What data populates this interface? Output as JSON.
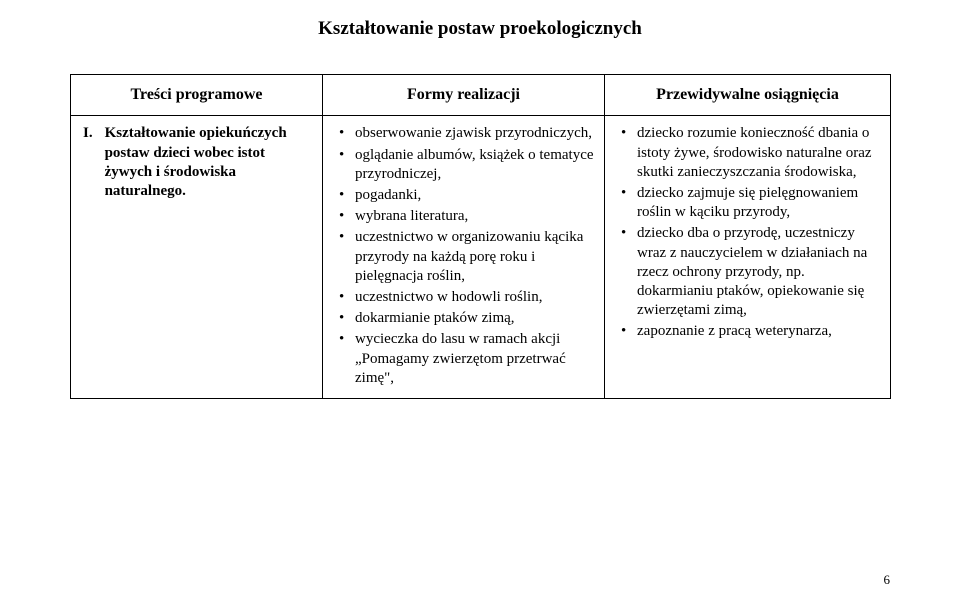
{
  "title": "Kształtowanie postaw proekologicznych",
  "headers": {
    "col1": "Treści programowe",
    "col2": "Formy realizacji",
    "col3": "Przewidywalne osiągnięcia"
  },
  "row1": {
    "roman": "I.",
    "text": "Kształtowanie opiekuńczych postaw dzieci wobec istot żywych i środowiska naturalnego."
  },
  "col2_items": [
    "obserwowanie zjawisk przyrodniczych,",
    "oglądanie albumów, książek o tematyce przyrodniczej,",
    "pogadanki,",
    "wybrana literatura,",
    "uczestnictwo w organizowaniu kącika przyrody na każdą porę roku i pielęgnacja roślin,",
    "uczestnictwo w hodowli roślin,",
    "dokarmianie ptaków zimą,",
    "wycieczka do lasu w ramach akcji „Pomagamy zwierzętom przetrwać zimę\","
  ],
  "col3_items": [
    "dziecko rozumie konieczność dbania o istoty żywe, środowisko naturalne oraz skutki zanieczyszczania środowiska,",
    "dziecko zajmuje się pielęgnowaniem roślin w kąciku przyrody,",
    "dziecko dba o przyrodę, uczestniczy wraz z nauczycielem w działaniach na rzecz ochrony przyrody, np. dokarmianiu ptaków, opiekowanie się zwierzętami zimą,",
    "zapoznanie z pracą weterynarza,"
  ],
  "page_number": "6"
}
